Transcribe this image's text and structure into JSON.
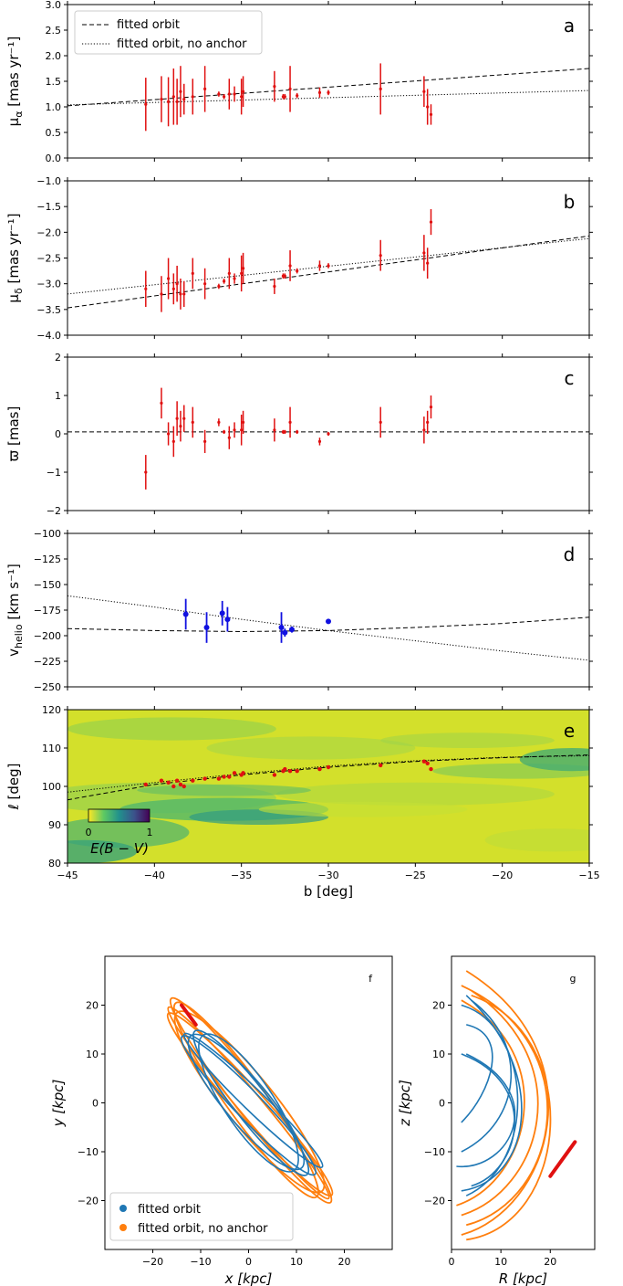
{
  "colors": {
    "data": "#e01010",
    "rv": "#1010e0",
    "fit_3d": "#1f77b4",
    "noanchor_3d": "#ff7f0e",
    "stream_3d": "#e01010"
  },
  "chart_data": [
    {
      "panel": "a",
      "type": "scatter",
      "ylabel": "μ_α [mas yr⁻¹]",
      "xlim": [
        -45,
        -15
      ],
      "ylim": [
        0.0,
        3.0
      ],
      "yticks": [
        "0.0",
        "0.5",
        "1.0",
        "1.5",
        "2.0",
        "2.5",
        "3.0"
      ],
      "legend": {
        "position": "top-left",
        "entries": [
          "fitted orbit",
          "fitted orbit, no anchor"
        ]
      },
      "series": [
        {
          "name": "fitted orbit",
          "style": "dashed",
          "x": [
            -45,
            -15
          ],
          "y": [
            1.02,
            1.75
          ]
        },
        {
          "name": "fitted orbit, no anchor",
          "style": "dotted",
          "x": [
            -45,
            -15
          ],
          "y": [
            1.04,
            1.32
          ]
        }
      ],
      "points": [
        {
          "x": -40.5,
          "y": 1.05,
          "err": 0.52
        },
        {
          "x": -39.6,
          "y": 1.15,
          "err": 0.45
        },
        {
          "x": -39.2,
          "y": 1.1,
          "err": 0.48
        },
        {
          "x": -38.9,
          "y": 1.2,
          "err": 0.55
        },
        {
          "x": -38.7,
          "y": 1.1,
          "err": 0.45
        },
        {
          "x": -38.5,
          "y": 1.3,
          "err": 0.5
        },
        {
          "x": -38.3,
          "y": 1.15,
          "err": 0.3
        },
        {
          "x": -37.8,
          "y": 1.2,
          "err": 0.35
        },
        {
          "x": -37.1,
          "y": 1.35,
          "err": 0.45
        },
        {
          "x": -36.3,
          "y": 1.25,
          "err": 0.05
        },
        {
          "x": -36.0,
          "y": 1.2,
          "err": 0.05
        },
        {
          "x": -35.7,
          "y": 1.25,
          "err": 0.3
        },
        {
          "x": -35.4,
          "y": 1.25,
          "err": 0.15
        },
        {
          "x": -35.0,
          "y": 1.2,
          "err": 0.35
        },
        {
          "x": -34.9,
          "y": 1.3,
          "err": 0.3
        },
        {
          "x": -33.1,
          "y": 1.4,
          "err": 0.3
        },
        {
          "x": -32.6,
          "y": 1.2,
          "err": 0.05
        },
        {
          "x": -32.5,
          "y": 1.2,
          "err": 0.05
        },
        {
          "x": -32.2,
          "y": 1.35,
          "err": 0.45
        },
        {
          "x": -31.8,
          "y": 1.22,
          "err": 0.05
        },
        {
          "x": -30.5,
          "y": 1.28,
          "err": 0.1
        },
        {
          "x": -30.0,
          "y": 1.28,
          "err": 0.05
        },
        {
          "x": -27.0,
          "y": 1.35,
          "err": 0.5
        },
        {
          "x": -24.5,
          "y": 1.3,
          "err": 0.3
        },
        {
          "x": -24.3,
          "y": 1.0,
          "err": 0.35
        },
        {
          "x": -24.1,
          "y": 0.85,
          "err": 0.2
        }
      ]
    },
    {
      "panel": "b",
      "type": "scatter",
      "ylabel": "μ_δ [mas yr⁻¹]",
      "xlim": [
        -45,
        -15
      ],
      "ylim": [
        -4.0,
        -1.0
      ],
      "yticks": [
        "−4.0",
        "−3.5",
        "−3.0",
        "−2.5",
        "−2.0",
        "−1.5",
        "−1.0"
      ],
      "series": [
        {
          "name": "fitted orbit",
          "style": "dashed",
          "x": [
            -45,
            -15
          ],
          "y": [
            -3.47,
            -2.07
          ]
        },
        {
          "name": "fitted orbit, no anchor",
          "style": "dotted",
          "x": [
            -45,
            -15
          ],
          "y": [
            -3.2,
            -2.12
          ]
        }
      ],
      "points": [
        {
          "x": -40.5,
          "y": -3.1,
          "err": 0.35
        },
        {
          "x": -39.6,
          "y": -3.2,
          "err": 0.35
        },
        {
          "x": -39.2,
          "y": -2.9,
          "err": 0.4
        },
        {
          "x": -38.9,
          "y": -3.1,
          "err": 0.3
        },
        {
          "x": -38.7,
          "y": -3.0,
          "err": 0.35
        },
        {
          "x": -38.5,
          "y": -3.2,
          "err": 0.3
        },
        {
          "x": -38.3,
          "y": -3.2,
          "err": 0.25
        },
        {
          "x": -37.8,
          "y": -2.8,
          "err": 0.3
        },
        {
          "x": -37.1,
          "y": -3.0,
          "err": 0.3
        },
        {
          "x": -36.3,
          "y": -3.05,
          "err": 0.05
        },
        {
          "x": -36.0,
          "y": -2.95,
          "err": 0.05
        },
        {
          "x": -35.7,
          "y": -2.8,
          "err": 0.3
        },
        {
          "x": -35.4,
          "y": -2.9,
          "err": 0.1
        },
        {
          "x": -35.0,
          "y": -2.8,
          "err": 0.35
        },
        {
          "x": -34.9,
          "y": -2.7,
          "err": 0.3
        },
        {
          "x": -33.1,
          "y": -3.05,
          "err": 0.15
        },
        {
          "x": -32.6,
          "y": -2.85,
          "err": 0.05
        },
        {
          "x": -32.5,
          "y": -2.85,
          "err": 0.05
        },
        {
          "x": -32.2,
          "y": -2.65,
          "err": 0.3
        },
        {
          "x": -31.8,
          "y": -2.75,
          "err": 0.05
        },
        {
          "x": -30.5,
          "y": -2.65,
          "err": 0.1
        },
        {
          "x": -30.0,
          "y": -2.65,
          "err": 0.05
        },
        {
          "x": -27.0,
          "y": -2.45,
          "err": 0.3
        },
        {
          "x": -24.5,
          "y": -2.4,
          "err": 0.35
        },
        {
          "x": -24.3,
          "y": -2.6,
          "err": 0.3
        },
        {
          "x": -24.1,
          "y": -1.8,
          "err": 0.25
        }
      ]
    },
    {
      "panel": "c",
      "type": "scatter",
      "ylabel": "ϖ [mas]",
      "xlim": [
        -45,
        -15
      ],
      "ylim": [
        -2,
        2
      ],
      "yticks": [
        "−2",
        "−1",
        "0",
        "1",
        "2"
      ],
      "series": [
        {
          "name": "fitted orbit",
          "style": "dashed",
          "x": [
            -45,
            -15
          ],
          "y": [
            0.05,
            0.05
          ]
        }
      ],
      "points": [
        {
          "x": -40.5,
          "y": -1.0,
          "err": 0.45
        },
        {
          "x": -39.6,
          "y": 0.8,
          "err": 0.4
        },
        {
          "x": -39.2,
          "y": 0.0,
          "err": 0.3
        },
        {
          "x": -38.9,
          "y": -0.2,
          "err": 0.4
        },
        {
          "x": -38.7,
          "y": 0.4,
          "err": 0.45
        },
        {
          "x": -38.5,
          "y": 0.2,
          "err": 0.4
        },
        {
          "x": -38.3,
          "y": 0.4,
          "err": 0.35
        },
        {
          "x": -37.8,
          "y": 0.3,
          "err": 0.4
        },
        {
          "x": -37.1,
          "y": -0.2,
          "err": 0.3
        },
        {
          "x": -36.3,
          "y": 0.3,
          "err": 0.1
        },
        {
          "x": -36.0,
          "y": 0.05,
          "err": 0.05
        },
        {
          "x": -35.7,
          "y": -0.1,
          "err": 0.3
        },
        {
          "x": -35.4,
          "y": 0.1,
          "err": 0.2
        },
        {
          "x": -35.0,
          "y": 0.1,
          "err": 0.4
        },
        {
          "x": -34.9,
          "y": 0.3,
          "err": 0.3
        },
        {
          "x": -33.1,
          "y": 0.1,
          "err": 0.3
        },
        {
          "x": -32.6,
          "y": 0.05,
          "err": 0.05
        },
        {
          "x": -32.5,
          "y": 0.05,
          "err": 0.05
        },
        {
          "x": -32.2,
          "y": 0.3,
          "err": 0.4
        },
        {
          "x": -31.8,
          "y": 0.05,
          "err": 0.05
        },
        {
          "x": -30.5,
          "y": -0.2,
          "err": 0.1
        },
        {
          "x": -30.0,
          "y": 0.0,
          "err": 0.05
        },
        {
          "x": -27.0,
          "y": 0.3,
          "err": 0.4
        },
        {
          "x": -24.5,
          "y": 0.1,
          "err": 0.35
        },
        {
          "x": -24.3,
          "y": 0.3,
          "err": 0.3
        },
        {
          "x": -24.1,
          "y": 0.7,
          "err": 0.3
        }
      ]
    },
    {
      "panel": "d",
      "type": "scatter",
      "ylabel": "v_helio [km s⁻¹]",
      "xlim": [
        -45,
        -15
      ],
      "ylim": [
        -250,
        -100
      ],
      "yticks": [
        "−250",
        "−225",
        "−200",
        "−175",
        "−150",
        "−125",
        "−100"
      ],
      "series": [
        {
          "name": "fitted orbit",
          "style": "dashed",
          "x": [
            -45,
            -40,
            -35,
            -30,
            -25,
            -20,
            -15
          ],
          "y": [
            -193,
            -195,
            -196,
            -195,
            -192,
            -188,
            -182
          ]
        },
        {
          "name": "fitted orbit, no anchor",
          "style": "dotted",
          "x": [
            -45,
            -40,
            -35,
            -30,
            -25,
            -20,
            -15
          ],
          "y": [
            -161,
            -172,
            -184,
            -195,
            -205,
            -215,
            -224
          ]
        }
      ],
      "points": [
        {
          "x": -38.2,
          "y": -179,
          "err": 15
        },
        {
          "x": -37.0,
          "y": -192,
          "err": 15
        },
        {
          "x": -36.1,
          "y": -178,
          "err": 12
        },
        {
          "x": -35.8,
          "y": -184,
          "err": 12
        },
        {
          "x": -32.7,
          "y": -192,
          "err": 15
        },
        {
          "x": -32.5,
          "y": -197,
          "err": 4
        },
        {
          "x": -32.1,
          "y": -194,
          "err": 3
        },
        {
          "x": -30.0,
          "y": -186,
          "err": 2
        }
      ]
    },
    {
      "panel": "e",
      "type": "heatmap",
      "xlabel": "b [deg]",
      "ylabel": "ℓ [deg]",
      "xlim": [
        -45,
        -15
      ],
      "ylim": [
        80,
        120
      ],
      "xticks": [
        "−45",
        "−40",
        "−35",
        "−30",
        "−25",
        "−20",
        "−15"
      ],
      "yticks": [
        "80",
        "90",
        "100",
        "110",
        "120"
      ],
      "colorbar": {
        "label": "E(B − V)",
        "min": "0",
        "max": "1"
      },
      "series": [
        {
          "name": "fitted orbit",
          "style": "dashed",
          "x": [
            -45,
            -40,
            -35,
            -30,
            -25,
            -20,
            -15
          ],
          "y": [
            96.5,
            100.5,
            103.0,
            105.0,
            106.5,
            107.5,
            108.2
          ]
        },
        {
          "name": "fitted orbit, no anchor",
          "style": "dotted",
          "x": [
            -45,
            -40,
            -35,
            -30,
            -25,
            -20,
            -15
          ],
          "y": [
            98.5,
            101.0,
            103.3,
            105.3,
            106.7,
            107.6,
            108.0
          ]
        }
      ],
      "points": [
        {
          "x": -40.5,
          "y": 100.5
        },
        {
          "x": -39.6,
          "y": 101.5
        },
        {
          "x": -39.2,
          "y": 101.0
        },
        {
          "x": -38.9,
          "y": 100.0
        },
        {
          "x": -38.7,
          "y": 101.5
        },
        {
          "x": -38.5,
          "y": 100.5
        },
        {
          "x": -38.3,
          "y": 100.0
        },
        {
          "x": -37.8,
          "y": 101.5
        },
        {
          "x": -37.1,
          "y": 102.0
        },
        {
          "x": -36.3,
          "y": 102.0
        },
        {
          "x": -36.0,
          "y": 102.5
        },
        {
          "x": -35.7,
          "y": 102.5
        },
        {
          "x": -35.4,
          "y": 103.5
        },
        {
          "x": -35.0,
          "y": 103.0
        },
        {
          "x": -34.9,
          "y": 103.5
        },
        {
          "x": -33.1,
          "y": 103.0
        },
        {
          "x": -32.6,
          "y": 104.0
        },
        {
          "x": -32.5,
          "y": 104.5
        },
        {
          "x": -32.2,
          "y": 104.0
        },
        {
          "x": -31.8,
          "y": 104.0
        },
        {
          "x": -30.5,
          "y": 104.5
        },
        {
          "x": -30.0,
          "y": 105.0
        },
        {
          "x": -27.0,
          "y": 105.5
        },
        {
          "x": -24.5,
          "y": 106.5
        },
        {
          "x": -24.3,
          "y": 106.0
        },
        {
          "x": -24.1,
          "y": 104.5
        }
      ]
    },
    {
      "panel": "f",
      "type": "line",
      "xlabel": "x [kpc]",
      "ylabel": "y [kpc]",
      "xlim": [
        -30,
        30
      ],
      "ylim": [
        -30,
        30
      ],
      "xticks": [
        "−20",
        "−10",
        "0",
        "10",
        "20"
      ],
      "yticks": [
        "−20",
        "−10",
        "0",
        "10",
        "20"
      ],
      "legend": {
        "position": "bottom-left",
        "entries": [
          "fitted orbit",
          "fitted orbit, no anchor"
        ]
      },
      "orbit_fitted": {
        "name": "fitted orbit",
        "major_axis_kpc": [
          -13,
          15,
          15,
          -13
        ],
        "extent_x": [
          -13,
          15
        ],
        "extent_y": [
          -13,
          17
        ]
      },
      "orbit_noanchor": {
        "name": "fitted orbit, no anchor",
        "extent_x": [
          -16,
          17
        ],
        "extent_y": [
          -20,
          21
        ]
      },
      "stream_segment": {
        "x": [
          -14,
          -11
        ],
        "y": [
          20,
          16
        ]
      }
    },
    {
      "panel": "g",
      "type": "line",
      "xlabel": "R [kpc]",
      "ylabel": "z [kpc]",
      "xlim": [
        0,
        29
      ],
      "ylim": [
        -30,
        30
      ],
      "xticks": [
        "0",
        "10",
        "20"
      ],
      "yticks": [
        "−20",
        "−10",
        "0",
        "10",
        "20"
      ],
      "orbit_fitted": {
        "name": "fitted orbit",
        "extent_R": [
          1,
          21
        ],
        "extent_z": [
          -19,
          22
        ]
      },
      "orbit_noanchor": {
        "name": "fitted orbit, no anchor",
        "extent_R": [
          2,
          25
        ],
        "extent_z": [
          -28,
          27
        ]
      },
      "stream_segment": {
        "R": [
          20,
          25
        ],
        "z": [
          -15,
          -8
        ]
      }
    }
  ]
}
